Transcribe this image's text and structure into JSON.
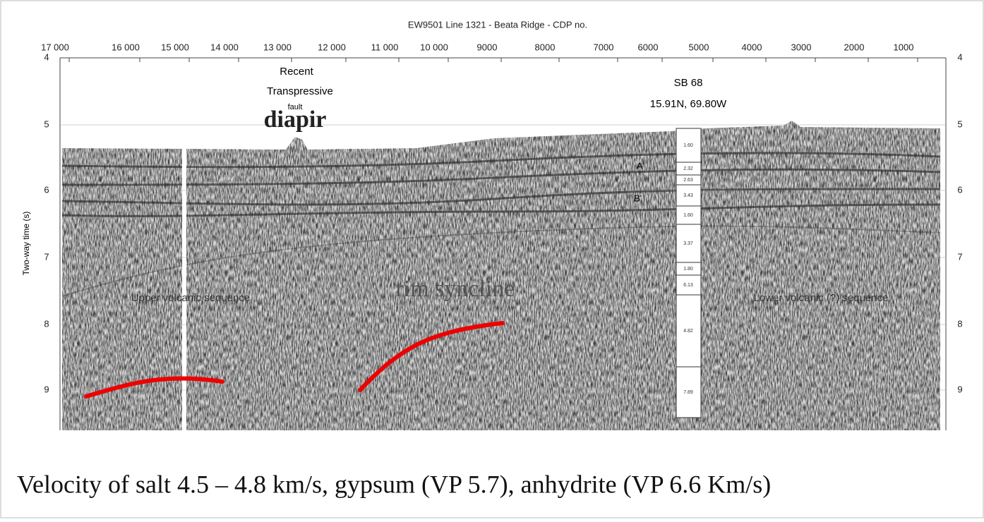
{
  "figure": {
    "title": "EW9501 Line 1321 - Beata Ridge - CDP no.",
    "x_ticks": [
      "17 000",
      "16 000",
      "15 000",
      "14 000",
      "13 000",
      "12 000",
      "11 000",
      "10 000",
      "9000",
      "8000",
      "7000",
      "6000",
      "5000",
      "4000",
      "3000",
      "2000",
      "1000"
    ],
    "y_ticks": [
      "4",
      "5",
      "6",
      "7",
      "8",
      "9"
    ],
    "y_axis_label": "Two-way time (s)",
    "annotations": {
      "recent": "Recent",
      "transpressive": "Transpressive",
      "fault": "fault",
      "diapir": "diapir",
      "site": "SB 68",
      "coords": "15.91N, 69.80W",
      "a": "A'",
      "b": "B'",
      "upper": "Upper volcanic sequence",
      "rim": "rim syncline",
      "lower": "Lower volcanic (?) sequence"
    },
    "well_log": [
      "1.60",
      "2.32",
      "2.63",
      "3.43",
      "1.60",
      "3.37",
      "1.80",
      "6.13",
      "4.82",
      "7.89"
    ]
  },
  "caption": "Velocity of salt 4.5 – 4.8 km/s, gypsum (VP 5.7), anhydrite (VP 6.6 Km/s)"
}
